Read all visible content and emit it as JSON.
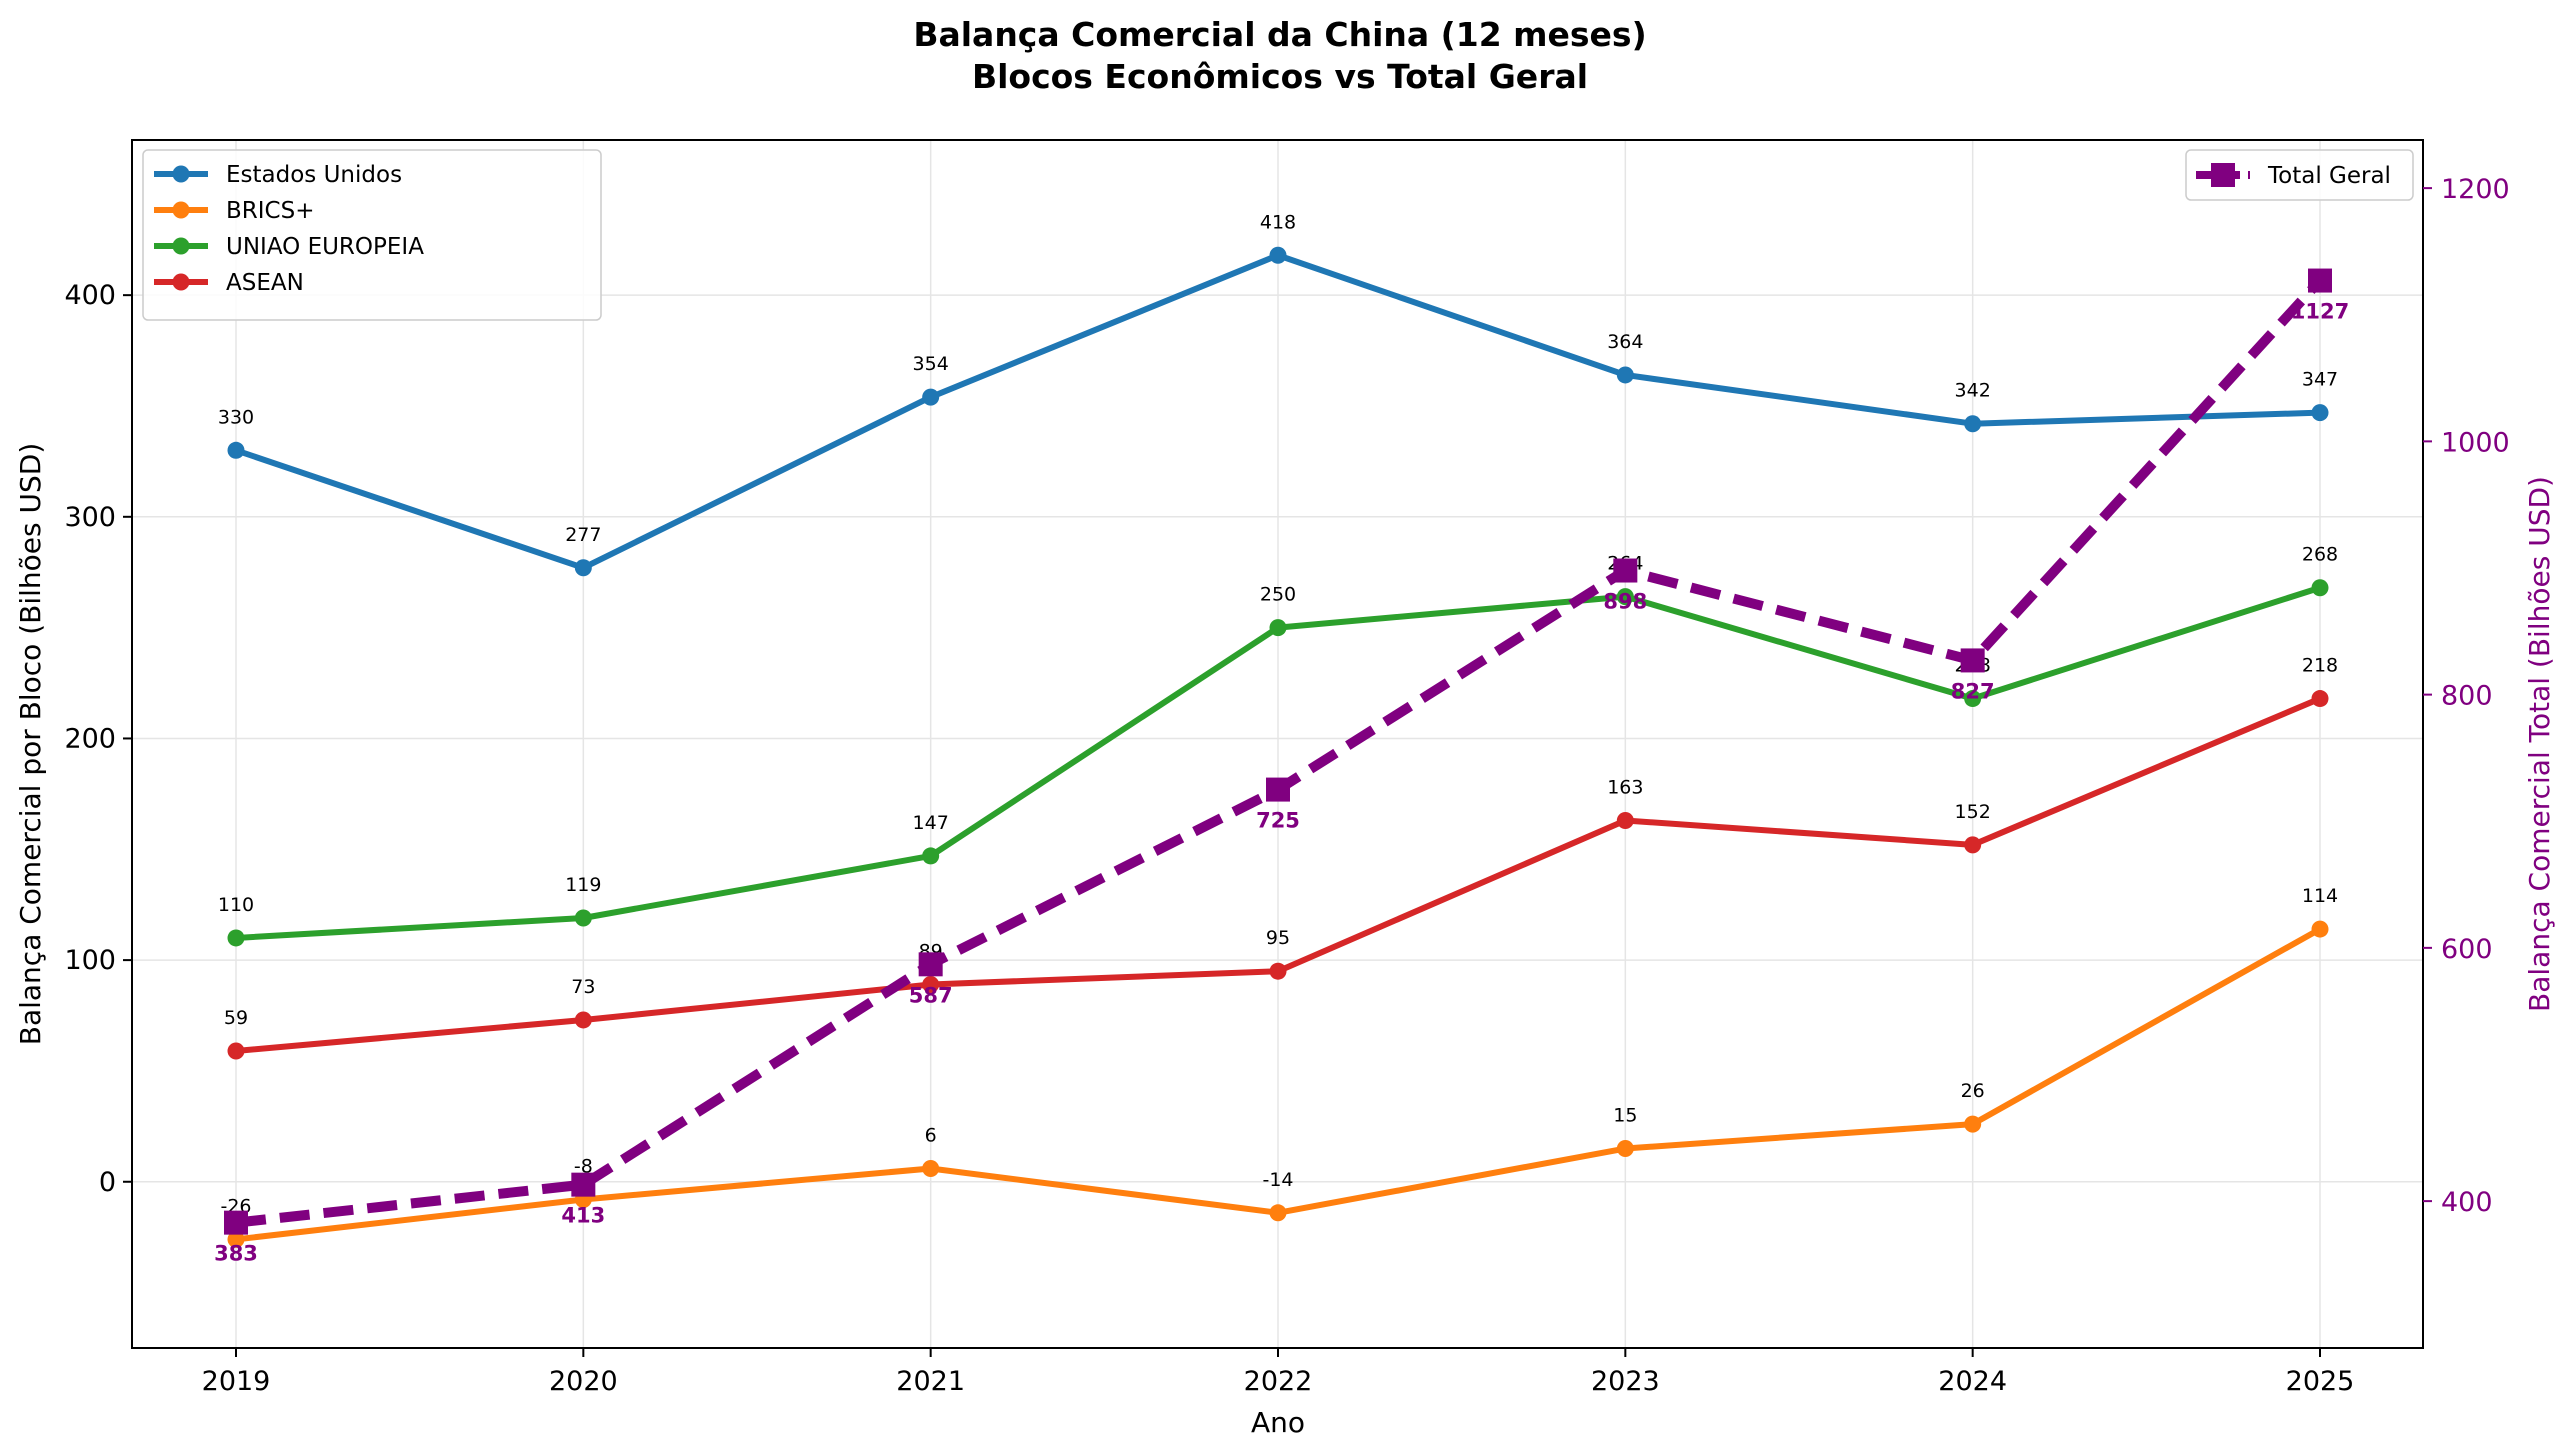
{
  "chart_data": {
    "type": "line",
    "title": "Balança Comercial da China (12 meses)",
    "subtitle": "Blocos Econômicos vs Total Geral",
    "xlabel": "Ano",
    "ylabel": "Balança Comercial por Bloco (Bilhões USD)",
    "ylabel_right": "Balança Comercial Total (Bilhões USD)",
    "x": [
      "2019",
      "2020",
      "2021",
      "2022",
      "2023",
      "2024",
      "2025"
    ],
    "ylim": [
      -75,
      470
    ],
    "yticks": [
      0,
      100,
      200,
      300,
      400
    ],
    "ylim_right": [
      284,
      1238
    ],
    "yticks_right": [
      400,
      600,
      800,
      1000,
      1200
    ],
    "grid": true,
    "legend_left_position": "upper-left",
    "legend_right_position": "upper-right",
    "series": [
      {
        "name": "Estados Unidos",
        "color": "#1f77b4",
        "values": [
          330,
          277,
          354,
          418,
          364,
          342,
          347
        ]
      },
      {
        "name": "BRICS+",
        "color": "#ff7f0e",
        "values": [
          -26,
          -8,
          6,
          -14,
          15,
          26,
          114
        ]
      },
      {
        "name": "UNIAO EUROPEIA",
        "color": "#2ca02c",
        "values": [
          110,
          119,
          147,
          250,
          264,
          218,
          268
        ]
      },
      {
        "name": "ASEAN",
        "color": "#d62728",
        "values": [
          59,
          73,
          89,
          95,
          163,
          152,
          218
        ]
      }
    ],
    "series_right": [
      {
        "name": "Total Geral",
        "color": "#800080",
        "style": "dashed",
        "marker": "square",
        "values": [
          383,
          413,
          587,
          725,
          898,
          827,
          1127
        ]
      }
    ]
  }
}
